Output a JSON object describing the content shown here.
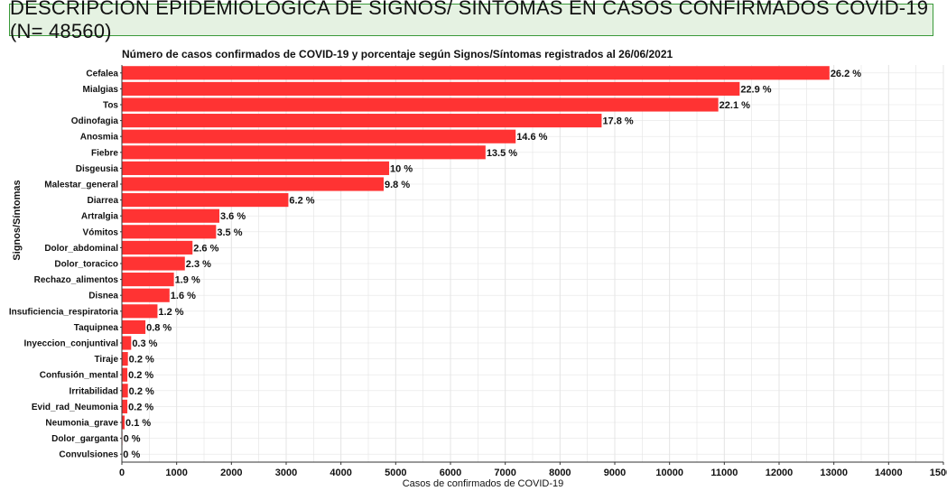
{
  "banner": {
    "title": "DESCRIPCIÓN EPIDEMIOLÓGICA DE SIGNOS/ SINTOMAS EN CASOS CONFIRMADOS COVID-19 (N= 48560)"
  },
  "colors": {
    "bar": "#ff3333",
    "grid": "#e4e4e4",
    "banner_bg": "#e5f2e2",
    "banner_border": "#3a9a3a"
  },
  "chart_data": {
    "type": "bar",
    "orientation": "horizontal",
    "title": "Número de casos confirmados de COVID-19 y porcentaje según Signos/Síntomas registrados al 26/06/2021",
    "xlabel": "Casos de confirmados de COVID-19",
    "ylabel": "Signos/Síntomas",
    "xlim": [
      0,
      15000
    ],
    "xticks": [
      "0",
      "1000",
      "2000",
      "3000",
      "4000",
      "5000",
      "6000",
      "7000",
      "8000",
      "9000",
      "10000",
      "11000",
      "12000",
      "13000",
      "14000",
      "15000"
    ],
    "grid": true,
    "categories": [
      "Cefalea",
      "Mialgias",
      "Tos",
      "Odinofagia",
      "Anosmia",
      "Fiebre",
      "Disgeusia",
      "Malestar_general",
      "Diarrea",
      "Artralgia",
      "Vómitos",
      "Dolor_abdominal",
      "Dolor_toracico",
      "Rechazo_alimentos",
      "Disnea",
      "Insuficiencia_respiratoria",
      "Taquipnea",
      "Inyeccion_conjuntival",
      "Tiraje",
      "Confusión_mental",
      "Irritabilidad",
      "Evid_rad_Neumonia",
      "Neumonia_grave",
      "Dolor_garganta",
      "Convulsiones"
    ],
    "values": [
      12920,
      11280,
      10890,
      8760,
      7190,
      6640,
      4880,
      4780,
      3040,
      1780,
      1720,
      1290,
      1150,
      950,
      870,
      650,
      430,
      170,
      110,
      100,
      110,
      100,
      50,
      10,
      5
    ],
    "labels": [
      "26.2 %",
      "22.9 %",
      "22.1 %",
      "17.8 %",
      "14.6 %",
      "13.5 %",
      "10 %",
      "9.8 %",
      "6.2 %",
      "3.6 %",
      "3.5 %",
      "2.6 %",
      "2.3 %",
      "1.9 %",
      "1.6 %",
      "1.2 %",
      "0.8 %",
      "0.3 %",
      "0.2 %",
      "0.2 %",
      "0.2 %",
      "0.2 %",
      "0.1 %",
      "0 %",
      "0 %"
    ]
  }
}
